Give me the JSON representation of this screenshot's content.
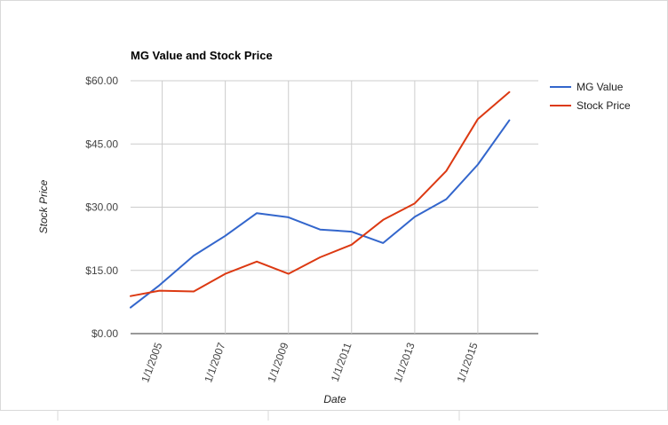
{
  "chart_data": {
    "type": "line",
    "title": "MG Value and Stock Price",
    "xlabel": "Date",
    "ylabel": "Stock Price",
    "ylim": [
      0,
      60
    ],
    "yticks": [
      {
        "value": 0,
        "label": "$0.00"
      },
      {
        "value": 15,
        "label": "$15.00"
      },
      {
        "value": 30,
        "label": "$30.00"
      },
      {
        "value": 45,
        "label": "$45.00"
      },
      {
        "value": 60,
        "label": "$60.00"
      }
    ],
    "xlim": [
      "2004-01-01",
      "2016-12-01"
    ],
    "xticks": [
      {
        "value": "2005-01-01",
        "label": "1/1/2005"
      },
      {
        "value": "2007-01-01",
        "label": "1/1/2007"
      },
      {
        "value": "2009-01-01",
        "label": "1/1/2009"
      },
      {
        "value": "2011-01-01",
        "label": "1/1/2011"
      },
      {
        "value": "2013-01-01",
        "label": "1/1/2013"
      },
      {
        "value": "2015-01-01",
        "label": "1/1/2015"
      }
    ],
    "grid": true,
    "legend": "right",
    "series": [
      {
        "name": "MG Value",
        "color": "#3366cc",
        "points": [
          {
            "x": "2004-01-01",
            "y": 6.2
          },
          {
            "x": "2004-12-01",
            "y": 11.5
          },
          {
            "x": "2006-01-01",
            "y": 18.5
          },
          {
            "x": "2007-01-01",
            "y": 23.2
          },
          {
            "x": "2008-01-01",
            "y": 28.6
          },
          {
            "x": "2009-01-01",
            "y": 27.6
          },
          {
            "x": "2010-01-01",
            "y": 24.7
          },
          {
            "x": "2011-01-01",
            "y": 24.2
          },
          {
            "x": "2012-01-01",
            "y": 21.5
          },
          {
            "x": "2013-01-01",
            "y": 27.7
          },
          {
            "x": "2014-01-01",
            "y": 31.9
          },
          {
            "x": "2015-01-01",
            "y": 40.1
          },
          {
            "x": "2016-01-01",
            "y": 50.6
          }
        ]
      },
      {
        "name": "Stock Price",
        "color": "#dc3912",
        "points": [
          {
            "x": "2004-01-01",
            "y": 8.9
          },
          {
            "x": "2004-12-01",
            "y": 10.2
          },
          {
            "x": "2006-01-01",
            "y": 10.0
          },
          {
            "x": "2007-01-01",
            "y": 14.2
          },
          {
            "x": "2008-01-01",
            "y": 17.1
          },
          {
            "x": "2009-01-01",
            "y": 14.2
          },
          {
            "x": "2010-01-01",
            "y": 18.1
          },
          {
            "x": "2011-01-01",
            "y": 21.1
          },
          {
            "x": "2012-01-01",
            "y": 27.0
          },
          {
            "x": "2013-01-01",
            "y": 30.9
          },
          {
            "x": "2014-01-01",
            "y": 38.6
          },
          {
            "x": "2015-01-01",
            "y": 50.9
          },
          {
            "x": "2016-01-01",
            "y": 57.3
          }
        ]
      }
    ]
  }
}
